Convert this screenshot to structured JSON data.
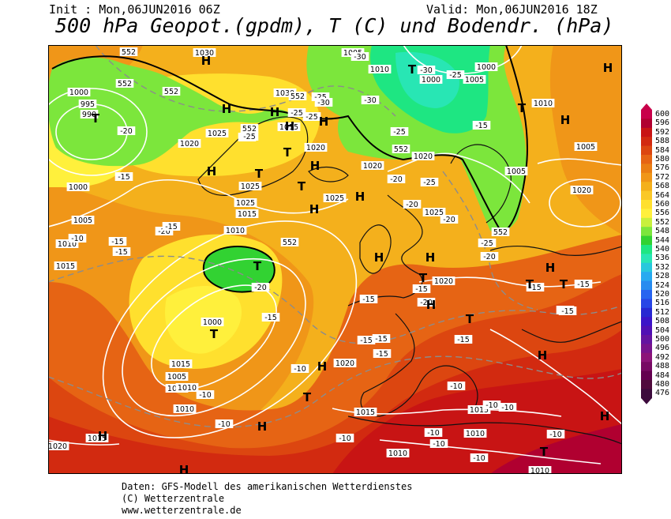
{
  "header": {
    "init": "Init : Mon,06JUN2016 06Z",
    "valid": "Valid: Mon,06JUN2016 18Z",
    "title": "500 hPa Geopot.(gpdm), T (C) und Bodendr. (hPa)"
  },
  "legend": {
    "values": [
      "600",
      "596",
      "592",
      "588",
      "584",
      "580",
      "576",
      "572",
      "568",
      "564",
      "560",
      "556",
      "552",
      "548",
      "544",
      "540",
      "536",
      "532",
      "528",
      "524",
      "520",
      "516",
      "512",
      "508",
      "504",
      "500",
      "496",
      "492",
      "488",
      "484",
      "480",
      "476"
    ],
    "colors": [
      "#c8004a",
      "#b00030",
      "#c81414",
      "#d22a10",
      "#dc4610",
      "#e66414",
      "#ea7e14",
      "#f09618",
      "#f4b01c",
      "#fac828",
      "#ffe02e",
      "#fff03c",
      "#c8f03c",
      "#7ce63c",
      "#32d232",
      "#1ee682",
      "#28e6b4",
      "#28c8dc",
      "#28aaf0",
      "#288cf0",
      "#2864f0",
      "#2846e6",
      "#2828d2",
      "#3c14c8",
      "#5010b4",
      "#6414a0",
      "#78148c",
      "#8c1478",
      "#780a64",
      "#640050",
      "#500a3c",
      "#3c0a3c"
    ]
  },
  "map": {
    "pressure_labels": [
      "1030",
      "1005",
      "1010",
      "1000",
      "1005",
      "1000",
      "995",
      "990",
      "1000",
      "1020",
      "1025",
      "1030",
      "1015",
      "1020",
      "1025",
      "1025",
      "1020",
      "1020",
      "1005",
      "1010",
      "1025",
      "1025",
      "1015",
      "1010",
      "1005",
      "1020",
      "1000",
      "1005",
      "1010",
      "1015",
      "1020",
      "1020",
      "1015",
      "1010",
      "1010",
      "1010",
      "1010",
      "1015",
      "1010",
      "1020",
      "1000",
      "1005",
      "1010",
      "1015",
      "1015"
    ],
    "temp_labels": [
      "-30",
      "-30",
      "-25",
      "-25",
      "-20",
      "-25",
      "-25",
      "-30",
      "-15",
      "-15",
      "-20",
      "-25",
      "-30",
      "-25",
      "-25",
      "-20",
      "-20",
      "-20",
      "-25",
      "-20",
      "-15",
      "-20",
      "-15",
      "-15",
      "-15",
      "-20",
      "-15",
      "-15",
      "-15",
      "-15",
      "-15",
      "-15",
      "-10",
      "-15",
      "-10",
      "-10",
      "-10",
      "-10",
      "-10",
      "-10",
      "-10",
      "-10",
      "-10",
      "-10",
      "-10",
      "-15",
      "-15",
      "-20",
      "-15"
    ],
    "geo_labels": [
      "552",
      "552",
      "552",
      "552",
      "552",
      "552",
      "552",
      "552"
    ],
    "highs": [
      "H",
      "H",
      "H",
      "H",
      "H",
      "H",
      "H",
      "H",
      "H",
      "H",
      "H",
      "H",
      "H",
      "H",
      "H",
      "H",
      "H",
      "H",
      "H",
      "H",
      "H"
    ],
    "lows": [
      "T",
      "T",
      "T",
      "T",
      "T",
      "T",
      "T",
      "T",
      "T",
      "T",
      "T",
      "T",
      "T",
      "T"
    ]
  },
  "footer": {
    "line1": "Daten: GFS-Modell des amerikanischen Wetterdienstes",
    "line2": "(C) Wetterzentrale",
    "line3": "www.wetterzentrale.de"
  }
}
